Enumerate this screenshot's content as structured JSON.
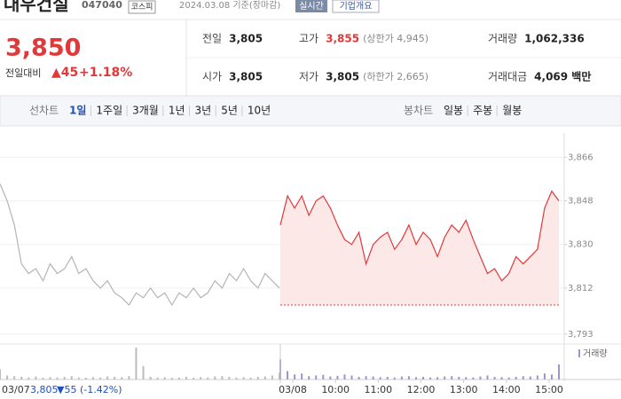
{
  "header": {
    "name": "대우건설",
    "code": "047040",
    "market": "코스피",
    "date": "2024.03.08 기준(장마감)",
    "realtime": "실시간",
    "company": "기업개요"
  },
  "quote": {
    "price": "3,850",
    "change_label": "전일대비",
    "change": "▲45",
    "rate": "+1.18%"
  },
  "stats": [
    {
      "label": "전일",
      "value": "3,805"
    },
    {
      "label": "고가",
      "value": "3,855",
      "note": "(상한가 4,945)"
    },
    {
      "label": "거래량",
      "value": "1,062,336"
    },
    {
      "label": "시가",
      "value": "3,805"
    },
    {
      "label": "저가",
      "value": "3,805",
      "note": "(하한가 2,665)"
    },
    {
      "label": "거래대금",
      "value": "4,069 백만"
    }
  ],
  "tabs": {
    "line_label": "선차트",
    "line": [
      "1일",
      "1주일",
      "3개월",
      "1년",
      "3년",
      "5년",
      "10년"
    ],
    "candle_label": "봉차트",
    "candle": [
      "일봉",
      "주봉",
      "월봉"
    ]
  },
  "prev_summary": {
    "price": "3,805",
    "change": "▼55",
    "rate": "(-1.42%)"
  },
  "chart_data": {
    "type": "line",
    "ylim": [
      3790,
      3876
    ],
    "yticks": [
      {
        "value": 3866,
        "label": "3,866"
      },
      {
        "value": 3848,
        "label": "3,848"
      },
      {
        "value": 3830,
        "label": "3,830"
      },
      {
        "value": 3812,
        "label": "3,812"
      },
      {
        "value": 3793,
        "label": "3,793"
      }
    ],
    "baseline": 3805,
    "x_labels": [
      "03/08",
      "10:00",
      "11:00",
      "12:00",
      "13:00",
      "14:00",
      "15:00"
    ],
    "volume_label": "거래량",
    "series": [
      {
        "name": "03/07",
        "color": "#b4b4b4",
        "values": [
          3855,
          3848,
          3838,
          3822,
          3818,
          3820,
          3815,
          3822,
          3818,
          3820,
          3825,
          3818,
          3820,
          3815,
          3812,
          3815,
          3810,
          3808,
          3805,
          3810,
          3808,
          3812,
          3808,
          3810,
          3805,
          3810,
          3808,
          3812,
          3808,
          3810,
          3815,
          3812,
          3818,
          3815,
          3820,
          3815,
          3812,
          3818,
          3815,
          3812
        ],
        "volumes": [
          30,
          12,
          10,
          8,
          6,
          9,
          5,
          7,
          6,
          8,
          10,
          6,
          5,
          7,
          6,
          9,
          8,
          7,
          10,
          95,
          40,
          8,
          6,
          7,
          5,
          6,
          8,
          5,
          7,
          6,
          9,
          10,
          8,
          6,
          7,
          5,
          8,
          9,
          12,
          20
        ]
      },
      {
        "name": "03/08",
        "color": "#e23838",
        "values": [
          3838,
          3850,
          3845,
          3850,
          3842,
          3848,
          3850,
          3845,
          3838,
          3832,
          3830,
          3835,
          3822,
          3830,
          3833,
          3835,
          3828,
          3832,
          3838,
          3830,
          3835,
          3832,
          3825,
          3833,
          3838,
          3835,
          3840,
          3832,
          3825,
          3818,
          3820,
          3815,
          3818,
          3825,
          3822,
          3825,
          3828,
          3845,
          3852,
          3848
        ],
        "volumes": [
          60,
          25,
          15,
          18,
          10,
          12,
          14,
          9,
          11,
          15,
          12,
          8,
          10,
          9,
          7,
          8,
          6,
          9,
          10,
          7,
          8,
          6,
          7,
          9,
          10,
          8,
          7,
          6,
          9,
          12,
          8,
          7,
          6,
          8,
          10,
          9,
          12,
          18,
          15,
          45
        ]
      }
    ]
  }
}
